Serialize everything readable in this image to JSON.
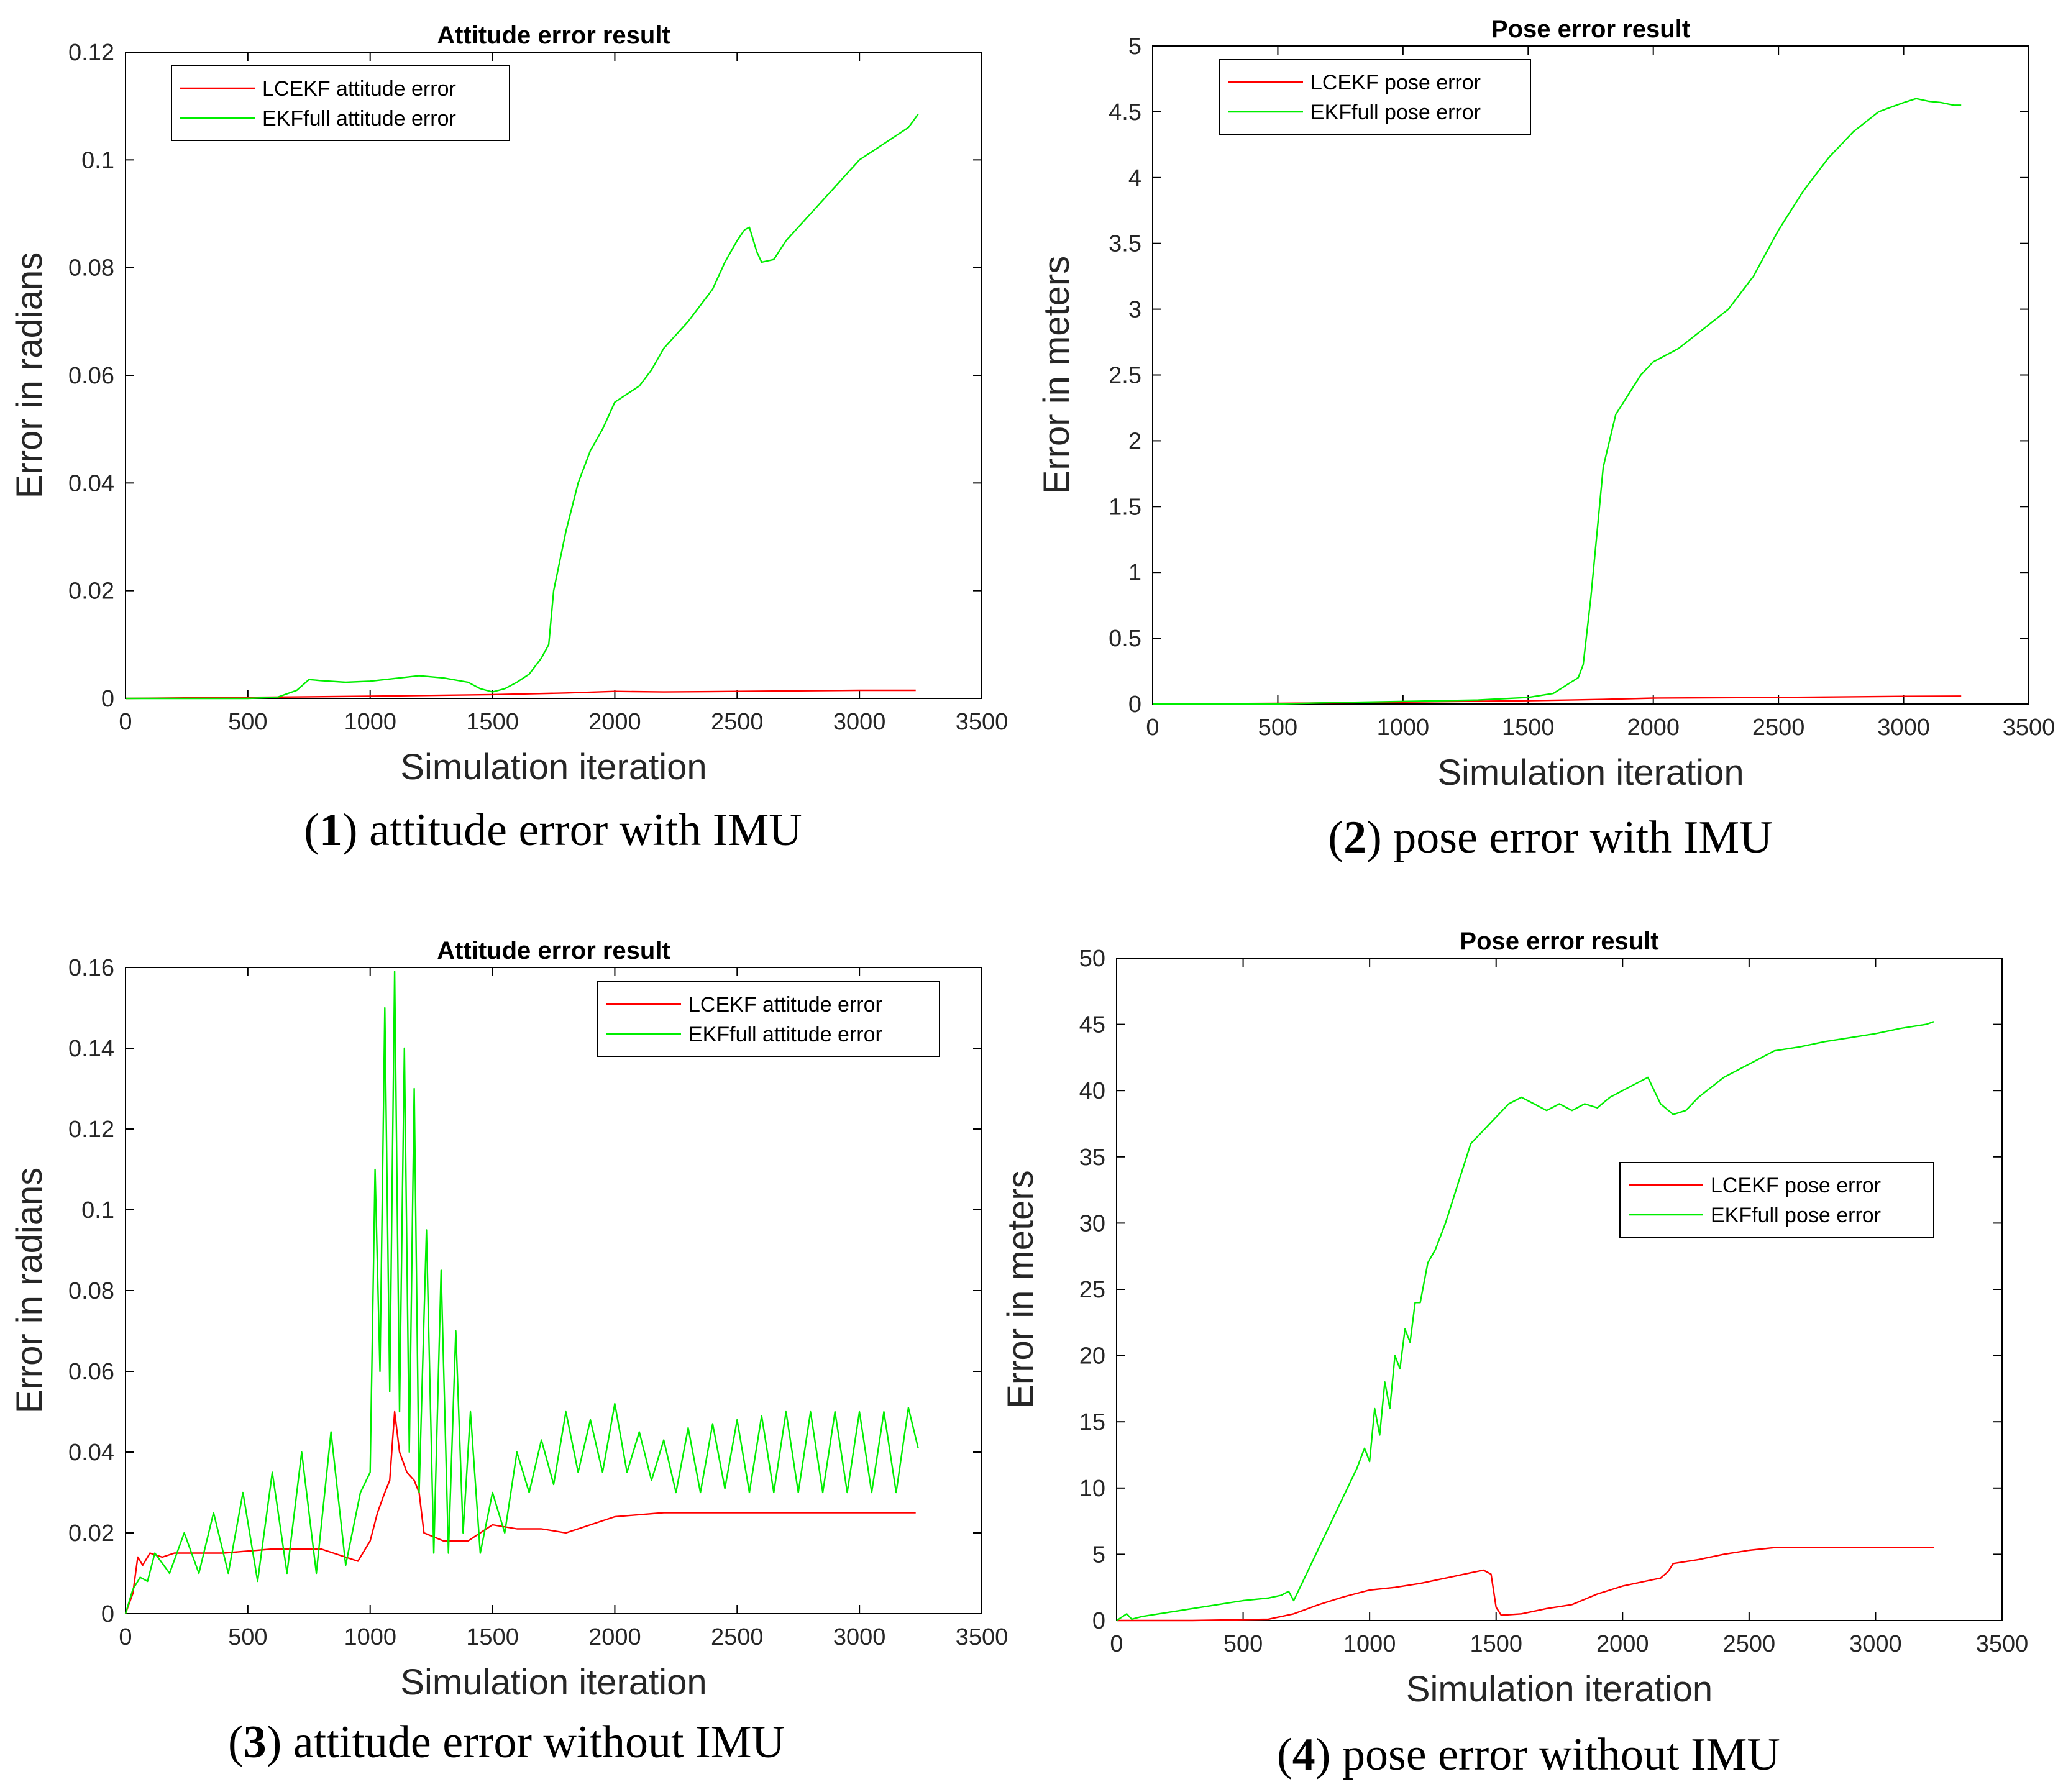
{
  "colors": {
    "lcekf": "#ff0000",
    "ekffull": "#00ee00"
  },
  "chart_data": [
    {
      "type": "line",
      "caption": {
        "number": "1",
        "text": "attitude error with IMU"
      },
      "title": "Attitude error result",
      "xlabel": "Simulation iteration",
      "ylabel": "Error in radians",
      "xlim": [
        0,
        3500
      ],
      "ylim": [
        0,
        0.12
      ],
      "xticks": [
        "0",
        "500",
        "1000",
        "1500",
        "2000",
        "2500",
        "3000",
        "3500"
      ],
      "yticks": [
        "0",
        "0.02",
        "0.04",
        "0.06",
        "0.08",
        "0.1",
        "0.12"
      ],
      "legend_position": "top-left",
      "series": [
        {
          "name": "LCEKF attitude error",
          "color": "#ff0000",
          "x": [
            0,
            500,
            1000,
            1500,
            1800,
            2000,
            2200,
            2500,
            3000,
            3230
          ],
          "y": [
            0,
            0.0002,
            0.0004,
            0.0007,
            0.001,
            0.0013,
            0.0012,
            0.0013,
            0.0015,
            0.0015
          ]
        },
        {
          "name": "EKFfull attitude error",
          "color": "#00ee00",
          "x": [
            0,
            500,
            620,
            700,
            750,
            800,
            900,
            1000,
            1100,
            1200,
            1300,
            1400,
            1450,
            1500,
            1550,
            1600,
            1650,
            1700,
            1730,
            1750,
            1800,
            1850,
            1900,
            1950,
            2000,
            2100,
            2150,
            2200,
            2300,
            2400,
            2450,
            2500,
            2530,
            2550,
            2580,
            2600,
            2650,
            2700,
            2800,
            2900,
            3000,
            3100,
            3200,
            3240
          ],
          "y": [
            0,
            0,
            0.0002,
            0.0015,
            0.0035,
            0.0033,
            0.003,
            0.0032,
            0.0037,
            0.0042,
            0.0038,
            0.003,
            0.0018,
            0.0012,
            0.0018,
            0.003,
            0.0045,
            0.0075,
            0.01,
            0.02,
            0.031,
            0.04,
            0.046,
            0.05,
            0.055,
            0.058,
            0.061,
            0.065,
            0.07,
            0.076,
            0.081,
            0.085,
            0.087,
            0.0875,
            0.083,
            0.081,
            0.0815,
            0.085,
            0.09,
            0.095,
            0.1,
            0.103,
            0.106,
            0.1085
          ]
        }
      ]
    },
    {
      "type": "line",
      "caption": {
        "number": "2",
        "text": "pose error with IMU"
      },
      "title": "Pose error result",
      "xlabel": "Simulation iteration",
      "ylabel": "Error in meters",
      "xlim": [
        0,
        3500
      ],
      "ylim": [
        0,
        5
      ],
      "xticks": [
        "0",
        "500",
        "1000",
        "1500",
        "2000",
        "2500",
        "3000",
        "3500"
      ],
      "yticks": [
        "0",
        "0.5",
        "1",
        "1.5",
        "2",
        "2.5",
        "3",
        "3.5",
        "4",
        "4.5",
        "5"
      ],
      "legend_position": "top-left",
      "series": [
        {
          "name": "LCEKF pose error",
          "color": "#ff0000",
          "x": [
            0,
            500,
            800,
            1000,
            1500,
            1800,
            2000,
            2500,
            3000,
            3230
          ],
          "y": [
            0,
            0.005,
            0.01,
            0.015,
            0.025,
            0.035,
            0.045,
            0.05,
            0.058,
            0.06
          ]
        },
        {
          "name": "EKFfull pose error",
          "color": "#00ee00",
          "x": [
            0,
            500,
            700,
            1000,
            1300,
            1500,
            1600,
            1700,
            1720,
            1750,
            1780,
            1800,
            1850,
            1900,
            1950,
            2000,
            2100,
            2200,
            2300,
            2400,
            2500,
            2600,
            2700,
            2800,
            2900,
            3000,
            3050,
            3100,
            3150,
            3200,
            3230
          ],
          "y": [
            0,
            0,
            0.01,
            0.02,
            0.03,
            0.05,
            0.08,
            0.2,
            0.3,
            0.8,
            1.4,
            1.8,
            2.2,
            2.35,
            2.5,
            2.6,
            2.7,
            2.85,
            3.0,
            3.25,
            3.6,
            3.9,
            4.15,
            4.35,
            4.5,
            4.57,
            4.6,
            4.58,
            4.57,
            4.55,
            4.55
          ]
        }
      ]
    },
    {
      "type": "line",
      "caption": {
        "number": "3",
        "text": "attitude error without IMU"
      },
      "title": "Attitude error result",
      "xlabel": "Simulation iteration",
      "ylabel": "Error in radians",
      "xlim": [
        0,
        3500
      ],
      "ylim": [
        0,
        0.16
      ],
      "xticks": [
        "0",
        "500",
        "1000",
        "1500",
        "2000",
        "2500",
        "3000",
        "3500"
      ],
      "yticks": [
        "0",
        "0.02",
        "0.04",
        "0.06",
        "0.08",
        "0.1",
        "0.12",
        "0.14",
        "0.16"
      ],
      "legend_position": "top-right",
      "series": [
        {
          "name": "LCEKF attitude error",
          "color": "#ff0000",
          "x": [
            0,
            30,
            50,
            70,
            100,
            150,
            200,
            400,
            600,
            800,
            950,
            980,
            1000,
            1030,
            1060,
            1080,
            1100,
            1120,
            1150,
            1180,
            1200,
            1220,
            1300,
            1400,
            1500,
            1600,
            1700,
            1800,
            1900,
            2000,
            2200,
            2500,
            2800,
            3000,
            3230
          ],
          "y": [
            0,
            0.005,
            0.014,
            0.012,
            0.015,
            0.014,
            0.015,
            0.015,
            0.016,
            0.016,
            0.013,
            0.016,
            0.018,
            0.025,
            0.03,
            0.033,
            0.05,
            0.04,
            0.035,
            0.033,
            0.03,
            0.02,
            0.018,
            0.018,
            0.022,
            0.021,
            0.021,
            0.02,
            0.022,
            0.024,
            0.025,
            0.025,
            0.025,
            0.025,
            0.025
          ]
        },
        {
          "name": "EKFfull attitude error",
          "color": "#00ee00",
          "x": [
            0,
            30,
            60,
            90,
            120,
            180,
            240,
            300,
            360,
            420,
            480,
            540,
            600,
            660,
            720,
            780,
            840,
            900,
            960,
            1000,
            1020,
            1040,
            1060,
            1080,
            1100,
            1120,
            1140,
            1160,
            1180,
            1200,
            1230,
            1260,
            1290,
            1320,
            1350,
            1380,
            1410,
            1450,
            1500,
            1550,
            1600,
            1650,
            1700,
            1750,
            1800,
            1850,
            1900,
            1950,
            2000,
            2050,
            2100,
            2150,
            2200,
            2250,
            2300,
            2350,
            2400,
            2450,
            2500,
            2550,
            2600,
            2650,
            2700,
            2750,
            2800,
            2850,
            2900,
            2950,
            3000,
            3050,
            3100,
            3150,
            3200,
            3240
          ],
          "y": [
            0,
            0.006,
            0.009,
            0.008,
            0.015,
            0.01,
            0.02,
            0.01,
            0.025,
            0.01,
            0.03,
            0.008,
            0.035,
            0.01,
            0.04,
            0.01,
            0.045,
            0.012,
            0.03,
            0.035,
            0.11,
            0.06,
            0.15,
            0.055,
            0.159,
            0.05,
            0.14,
            0.04,
            0.13,
            0.03,
            0.095,
            0.015,
            0.085,
            0.015,
            0.07,
            0.02,
            0.05,
            0.015,
            0.03,
            0.02,
            0.04,
            0.03,
            0.043,
            0.032,
            0.05,
            0.035,
            0.048,
            0.035,
            0.052,
            0.035,
            0.045,
            0.033,
            0.043,
            0.03,
            0.046,
            0.03,
            0.047,
            0.031,
            0.048,
            0.03,
            0.049,
            0.03,
            0.05,
            0.03,
            0.05,
            0.03,
            0.05,
            0.03,
            0.05,
            0.03,
            0.05,
            0.03,
            0.051,
            0.041
          ]
        }
      ]
    },
    {
      "type": "line",
      "caption": {
        "number": "4",
        "text": "pose error without IMU"
      },
      "title": "Pose error result",
      "xlabel": "Simulation iteration",
      "ylabel": "Error in meters",
      "xlim": [
        0,
        3500
      ],
      "ylim": [
        0,
        50
      ],
      "xticks": [
        "0",
        "500",
        "1000",
        "1500",
        "2000",
        "2500",
        "3000",
        "3500"
      ],
      "yticks": [
        "0",
        "5",
        "10",
        "15",
        "20",
        "25",
        "30",
        "35",
        "40",
        "45",
        "50"
      ],
      "legend_position": "right",
      "series": [
        {
          "name": "LCEKF pose error",
          "color": "#ff0000",
          "x": [
            0,
            300,
            600,
            700,
            800,
            900,
            1000,
            1100,
            1200,
            1300,
            1400,
            1450,
            1480,
            1500,
            1520,
            1600,
            1650,
            1700,
            1800,
            1900,
            2000,
            2100,
            2150,
            2180,
            2200,
            2300,
            2400,
            2500,
            2600,
            2700,
            2800,
            3000,
            3230
          ],
          "y": [
            0,
            0,
            0.1,
            0.5,
            1.2,
            1.8,
            2.3,
            2.5,
            2.8,
            3.2,
            3.6,
            3.8,
            3.5,
            1.0,
            0.4,
            0.5,
            0.7,
            0.9,
            1.2,
            2.0,
            2.6,
            3.0,
            3.2,
            3.7,
            4.3,
            4.6,
            5.0,
            5.3,
            5.5,
            5.5,
            5.5,
            5.5,
            5.5
          ]
        },
        {
          "name": "EKFfull pose error",
          "color": "#00ee00",
          "x": [
            0,
            40,
            60,
            100,
            200,
            300,
            400,
            500,
            600,
            650,
            680,
            700,
            750,
            800,
            850,
            900,
            950,
            980,
            1000,
            1020,
            1040,
            1060,
            1080,
            1100,
            1120,
            1140,
            1160,
            1180,
            1200,
            1230,
            1260,
            1300,
            1350,
            1400,
            1450,
            1500,
            1550,
            1600,
            1650,
            1700,
            1750,
            1800,
            1850,
            1900,
            1950,
            2000,
            2050,
            2100,
            2150,
            2200,
            2250,
            2300,
            2400,
            2500,
            2600,
            2700,
            2800,
            2900,
            3000,
            3100,
            3200,
            3230
          ],
          "y": [
            0,
            0.5,
            0.1,
            0.3,
            0.6,
            0.9,
            1.2,
            1.5,
            1.7,
            1.9,
            2.2,
            1.5,
            3.5,
            5.5,
            7.5,
            9.5,
            11.5,
            13,
            12,
            16,
            14,
            18,
            16,
            20,
            19,
            22,
            21,
            24,
            24,
            27,
            28,
            30,
            33,
            36,
            37,
            38,
            39,
            39.5,
            39,
            38.5,
            39,
            38.5,
            39,
            38.7,
            39.5,
            40,
            40.5,
            41,
            39,
            38.2,
            38.5,
            39.5,
            41,
            42,
            43,
            43.3,
            43.7,
            44,
            44.3,
            44.7,
            45,
            45.2
          ]
        }
      ]
    }
  ]
}
